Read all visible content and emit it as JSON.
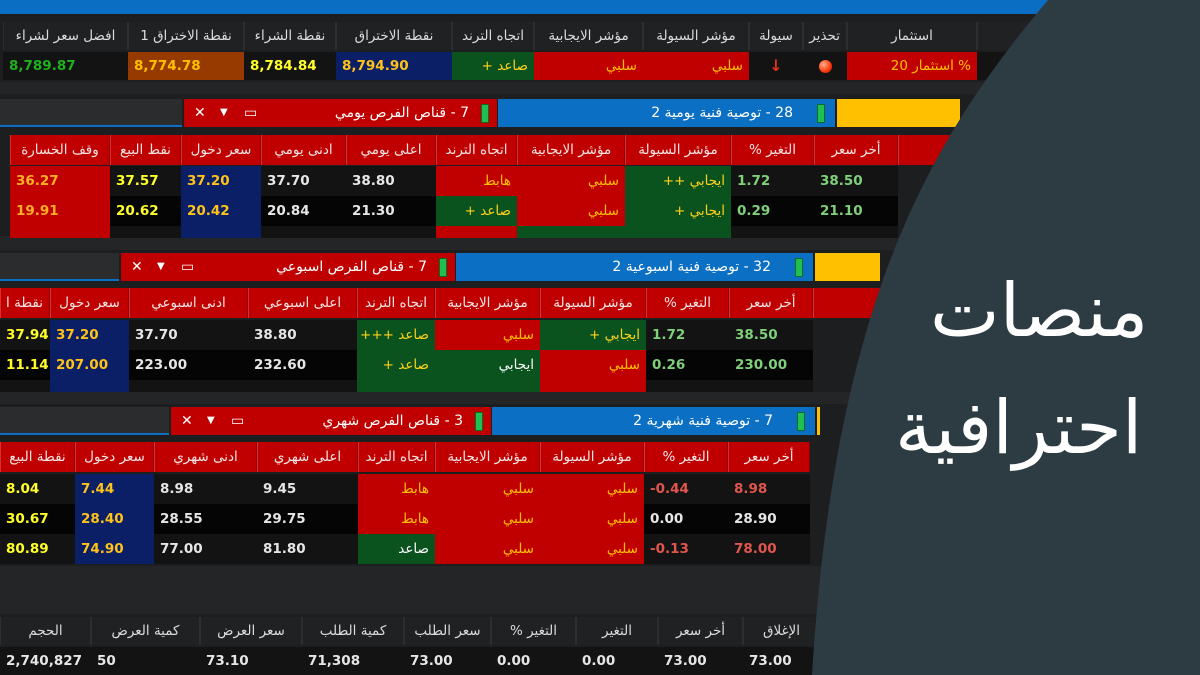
{
  "colors": {
    "accent_blue": "#0a6fc2",
    "header_red": "#c00000",
    "positive_green": "#0a531e",
    "entry_navy": "#0b1f66",
    "overlay": "#2d3b42",
    "tab_yellow": "#ffc000"
  },
  "top_table": {
    "columns": [
      "افضل سعر لشراء",
      "نقطة الاختراق 1",
      "نقطة الشراء",
      "نقطة الاختراق",
      "اتجاه الترند",
      "مؤشر الايجابية",
      "مؤشر السيولة",
      "سيولة",
      "تحذير",
      "استثمار",
      ""
    ],
    "row": [
      {
        "t": "8,789.87",
        "s": "k-gg"
      },
      {
        "t": "8,774.78",
        "s": "b-y"
      },
      {
        "t": "8,784.84",
        "s": "k-y"
      },
      {
        "t": "8,794.90",
        "s": "n-y"
      },
      {
        "t": "صاعد +",
        "s": "g-y"
      },
      {
        "t": "سلبي",
        "s": "r-y"
      },
      {
        "t": "سلبي",
        "s": "r-y"
      },
      {
        "t": "",
        "s": "k",
        "icon": "down-arrow-icon"
      },
      {
        "t": "",
        "s": "k",
        "icon": "red-dot-icon"
      },
      {
        "t": "% استثمار 20",
        "s": "r-y"
      },
      {
        "t": "",
        "s": "k"
      }
    ]
  },
  "panels": [
    {
      "red_tab": "7 - قناص الفرص يومي",
      "blue_tab": "28 - توصية فنية يومية 2",
      "columns": [
        "وقف الخسارة",
        "نقط البيع",
        "سعر دخول",
        "ادنى يومي",
        "اعلى يومي",
        "اتجاه الترند",
        "مؤشر الايجابية",
        "مؤشر السيولة",
        "التغير %",
        "أخر سعر",
        ""
      ],
      "rows": [
        [
          {
            "t": "36.27",
            "s": "r-o"
          },
          {
            "t": "37.57",
            "s": "k-y"
          },
          {
            "t": "37.20",
            "s": "n-y"
          },
          {
            "t": "37.70",
            "s": "k-w"
          },
          {
            "t": "38.80",
            "s": "k-w"
          },
          {
            "t": "هابط",
            "s": "r-y"
          },
          {
            "t": "سلبي",
            "s": "r-y"
          },
          {
            "t": "ايجابي ++",
            "s": "g-y"
          },
          {
            "t": "1.72",
            "s": "k-g"
          },
          {
            "t": "38.50",
            "s": "k-g"
          }
        ],
        [
          {
            "t": "19.91",
            "s": "r-o"
          },
          {
            "t": "20.62",
            "s": "k-y"
          },
          {
            "t": "20.42",
            "s": "n-y"
          },
          {
            "t": "20.84",
            "s": "k-w"
          },
          {
            "t": "21.30",
            "s": "k-w"
          },
          {
            "t": "صاعد +",
            "s": "g-y"
          },
          {
            "t": "سلبي",
            "s": "r-y"
          },
          {
            "t": "ايجابي +",
            "s": "g-y"
          },
          {
            "t": "0.29",
            "s": "k-g"
          },
          {
            "t": "21.10",
            "s": "k-g"
          }
        ],
        [
          {
            "t": "",
            "s": "r-o"
          },
          {
            "t": "",
            "s": "k-y"
          },
          {
            "t": "",
            "s": "n-y"
          },
          {
            "t": "",
            "s": "k-w"
          },
          {
            "t": "",
            "s": "k-w"
          },
          {
            "t": "",
            "s": "r-y"
          },
          {
            "t": "",
            "s": "g-y"
          },
          {
            "t": "",
            "s": "g-y"
          },
          {
            "t": "",
            "s": "k-r"
          },
          {
            "t": "",
            "s": "k-r"
          }
        ]
      ]
    },
    {
      "red_tab": "7 - قناص الفرص اسبوعي",
      "blue_tab": "32 - توصية فنية اسبوعية 2",
      "columns": [
        "نقطة ا",
        "سعر دخول",
        "ادنى اسبوعي",
        "اعلى اسبوعي",
        "اتجاه الترند",
        "مؤشر الايجابية",
        "مؤشر السيولة",
        "التغير %",
        "أخر سعر",
        ""
      ],
      "rows": [
        [
          {
            "t": "37.94",
            "s": "k-y"
          },
          {
            "t": "37.20",
            "s": "n-y"
          },
          {
            "t": "37.70",
            "s": "k-w"
          },
          {
            "t": "38.80",
            "s": "k-w"
          },
          {
            "t": "صاعد +++",
            "s": "g-y"
          },
          {
            "t": "سلبي",
            "s": "r-y"
          },
          {
            "t": "ايجابي +",
            "s": "g-y"
          },
          {
            "t": "1.72",
            "s": "k-g"
          },
          {
            "t": "38.50",
            "s": "k-g"
          }
        ],
        [
          {
            "t": "11.14",
            "s": "k-y"
          },
          {
            "t": "207.00",
            "s": "n-y"
          },
          {
            "t": "223.00",
            "s": "k-w"
          },
          {
            "t": "232.60",
            "s": "k-w"
          },
          {
            "t": "صاعد +",
            "s": "g-y"
          },
          {
            "t": "ايجابي",
            "s": "g-w"
          },
          {
            "t": "سلبي",
            "s": "r-y"
          },
          {
            "t": "0.26",
            "s": "k-g"
          },
          {
            "t": "230.00",
            "s": "k-g"
          }
        ],
        [
          {
            "t": "",
            "s": "k-y"
          },
          {
            "t": "",
            "s": "n-y"
          },
          {
            "t": "",
            "s": "k-w"
          },
          {
            "t": "",
            "s": "k-w"
          },
          {
            "t": "",
            "s": "g-y"
          },
          {
            "t": "",
            "s": "g-w"
          },
          {
            "t": "",
            "s": "r-y"
          },
          {
            "t": "",
            "s": "k-g"
          },
          {
            "t": "",
            "s": "k-g"
          }
        ]
      ]
    },
    {
      "red_tab": "3 - قناص الفرص شهري",
      "blue_tab": "7 - توصية فنية شهرية 2",
      "columns": [
        "نقطة البيع",
        "سعر دخول",
        "ادنى شهري",
        "اعلى شهري",
        "اتجاه الترند",
        "مؤشر الايجابية",
        "مؤشر السيولة",
        "التغير %",
        "أخر سعر"
      ],
      "rows": [
        [
          {
            "t": "8.04",
            "s": "k-y"
          },
          {
            "t": "7.44",
            "s": "n-y"
          },
          {
            "t": "8.98",
            "s": "k-w"
          },
          {
            "t": "9.45",
            "s": "k-w"
          },
          {
            "t": "هابط",
            "s": "r-y"
          },
          {
            "t": "سلبي",
            "s": "r-y"
          },
          {
            "t": "سلبي",
            "s": "r-y"
          },
          {
            "t": "-0.44",
            "s": "k-r"
          },
          {
            "t": "8.98",
            "s": "k-r"
          }
        ],
        [
          {
            "t": "30.67",
            "s": "k-y"
          },
          {
            "t": "28.40",
            "s": "n-y"
          },
          {
            "t": "28.55",
            "s": "k-w"
          },
          {
            "t": "29.75",
            "s": "k-w"
          },
          {
            "t": "هابط",
            "s": "r-y"
          },
          {
            "t": "سلبي",
            "s": "r-y"
          },
          {
            "t": "سلبي",
            "s": "r-y"
          },
          {
            "t": "0.00",
            "s": "k-w"
          },
          {
            "t": "28.90",
            "s": "k-w"
          }
        ],
        [
          {
            "t": "80.89",
            "s": "k-y"
          },
          {
            "t": "74.90",
            "s": "n-y"
          },
          {
            "t": "77.00",
            "s": "k-w"
          },
          {
            "t": "81.80",
            "s": "k-w"
          },
          {
            "t": "صاعد",
            "s": "g-w"
          },
          {
            "t": "سلبي",
            "s": "r-y"
          },
          {
            "t": "سلبي",
            "s": "r-y"
          },
          {
            "t": "-0.13",
            "s": "k-r"
          },
          {
            "t": "78.00",
            "s": "k-r"
          }
        ]
      ]
    }
  ],
  "bottom_table": {
    "columns": [
      "الحجم",
      "كمية العرض",
      "سعر العرض",
      "كمية الطلب",
      "سعر الطلب",
      "التغير %",
      "التغير",
      "أخر سعر",
      "الإغلاق"
    ],
    "row": [
      "2,740,827",
      "50",
      "73.10",
      "71,308",
      "73.00",
      "0.00",
      "0.00",
      "73.00",
      "73.00"
    ]
  },
  "overlay": {
    "line1": "منصات",
    "line2": "احترافية"
  }
}
